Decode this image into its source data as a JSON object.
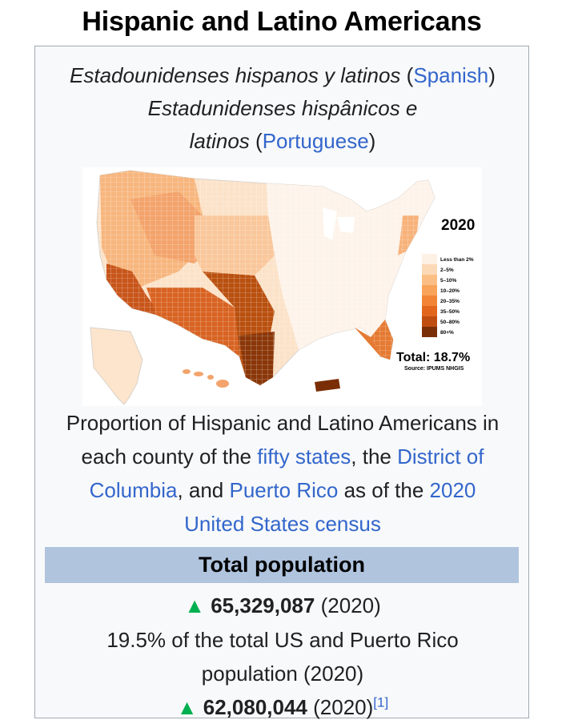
{
  "page_title": "Hispanic and Latino Americans",
  "native_names": [
    {
      "name": "Estadounidenses hispanos y latinos",
      "lang_link": "Spanish"
    },
    {
      "name_line1": "Estadunidenses hispânicos e",
      "name_line2": "latinos",
      "lang_link": "Portuguese"
    }
  ],
  "map": {
    "year_label": "2020",
    "legend": [
      "Less than 2%",
      "2–5%",
      "5–10%",
      "10–20%",
      "20–35%",
      "35–50%",
      "50–80%",
      "80+%"
    ],
    "legend_colors": [
      "#fdf0e4",
      "#fcd9b6",
      "#fbbf85",
      "#f9a35a",
      "#f28535",
      "#e2661c",
      "#c04d10",
      "#7a2e05"
    ],
    "total_label": "Total: 18.7%",
    "source_label": "Source: IPUMS NHGIS"
  },
  "caption": {
    "line1": "Proportion of Hispanic and Latino Americans in",
    "line2_pre": "each county of the ",
    "link_fifty_states": "fifty states",
    "line2_mid": ", the ",
    "link_dc_1": "District of",
    "link_dc_2": "Columbia",
    "line3_mid": ", and ",
    "link_pr": "Puerto Rico",
    "line3_post": " as of the ",
    "link_census_1": "2020",
    "link_census_2": "United States census"
  },
  "total_population_header": "Total population",
  "stats": {
    "pop_value": "65,329,087",
    "pop_year": "(2020)",
    "pct_line1": "19.5% of the total US and Puerto Rico",
    "pct_line2": "population (2020)",
    "pop2_value": "62,080,044",
    "pop2_year": "(2020)",
    "pop2_ref": "[1]"
  }
}
